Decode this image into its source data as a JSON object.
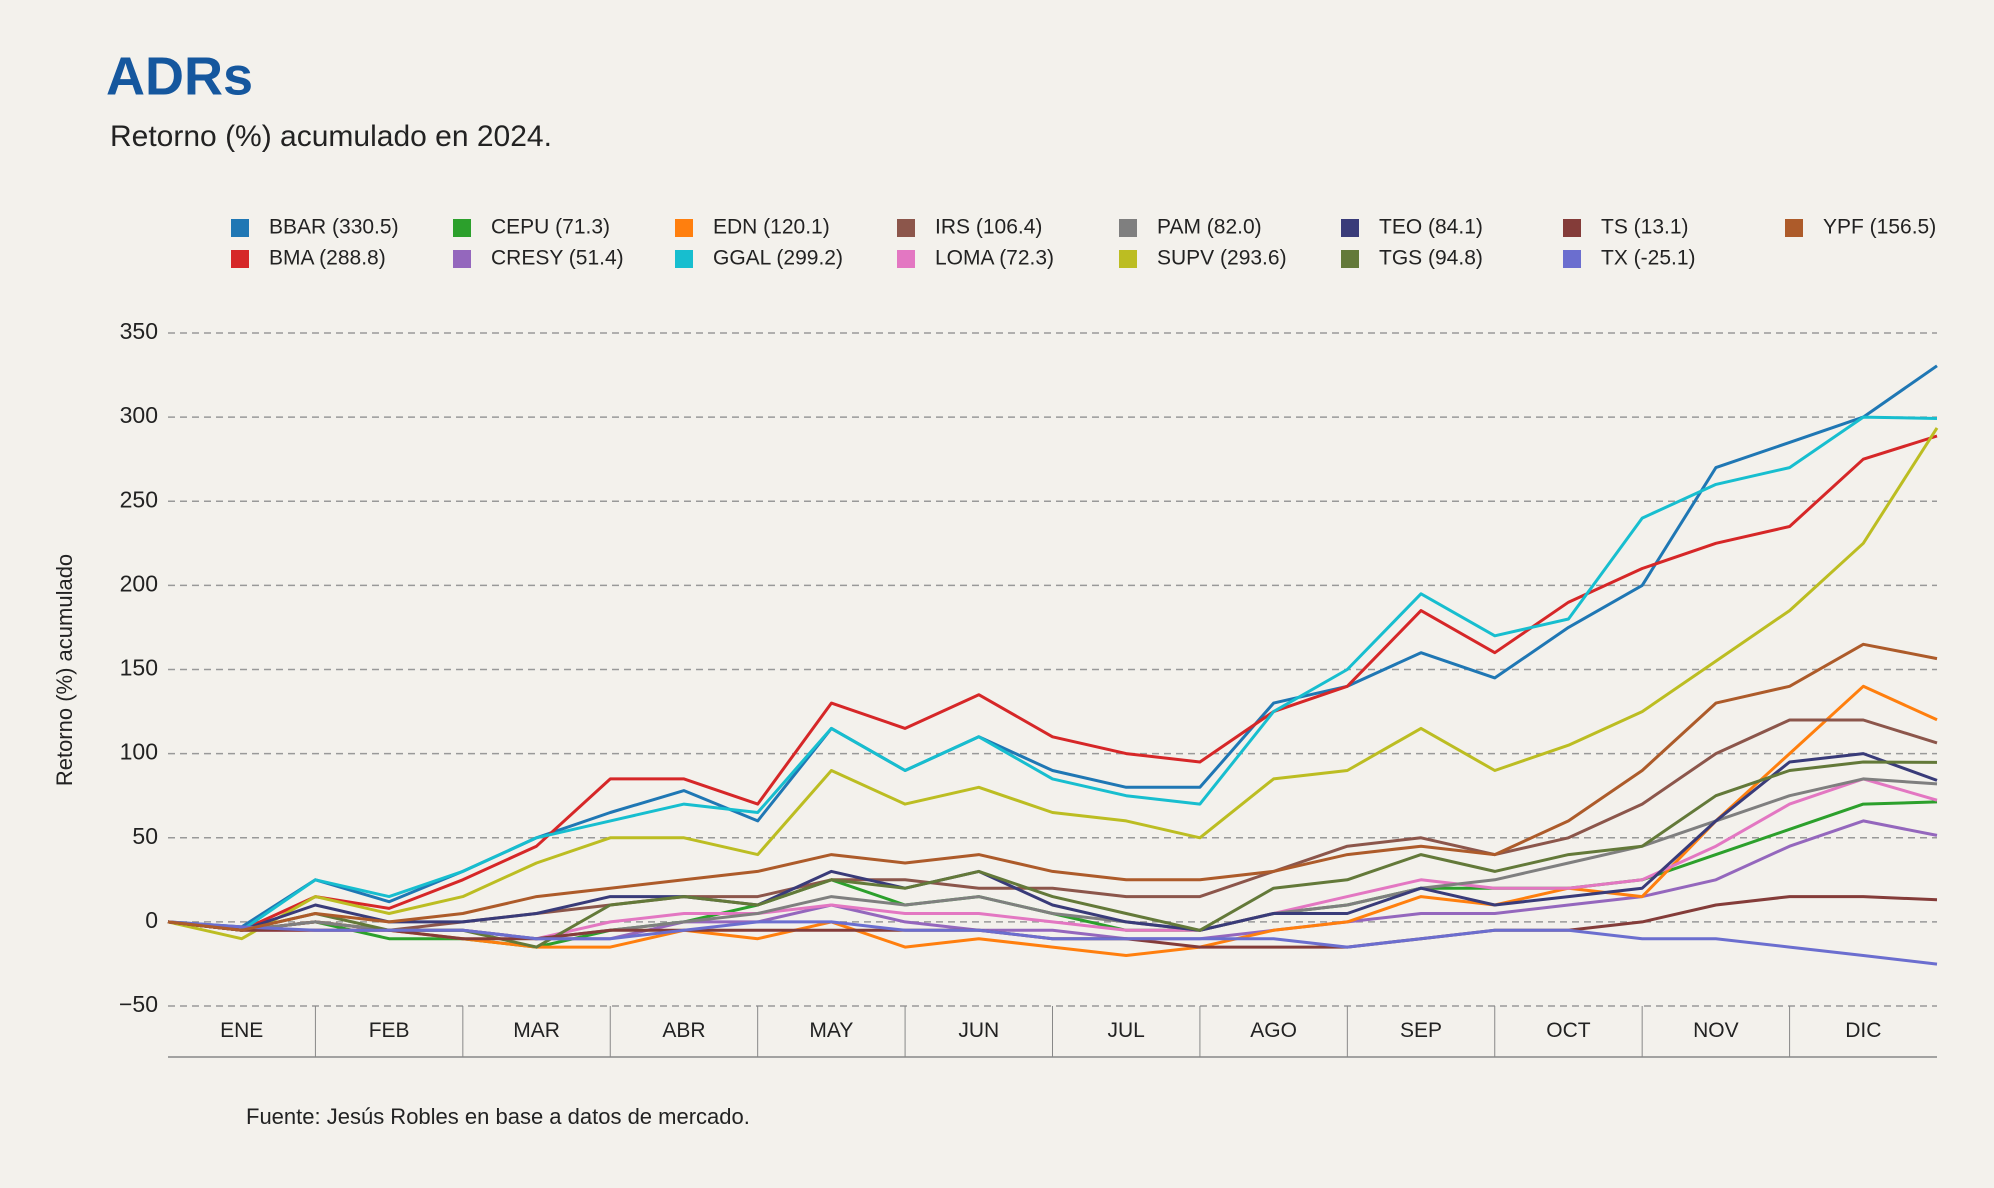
{
  "chart_data": {
    "type": "line",
    "title": "ADRs",
    "subtitle": "Retorno (%) acumulado en 2024.",
    "y_label": "Retorno (%) acumulado",
    "source": "Fuente: Jesús Robles en base a datos de mercado.",
    "months": [
      "ENE",
      "FEB",
      "MAR",
      "ABR",
      "MAY",
      "JUN",
      "JUL",
      "AGO",
      "SEP",
      "OCT",
      "NOV",
      "DIC"
    ],
    "ylim": [
      -50,
      350
    ],
    "yticks": [
      {
        "value": -50,
        "label": "−50"
      },
      0,
      50,
      100,
      150,
      200,
      250,
      300,
      350
    ],
    "grid": true,
    "series": [
      {
        "name": "BBAR (330.5)",
        "color": "#1f77b4",
        "values": [
          0,
          -3,
          25,
          12,
          30,
          50,
          65,
          78,
          60,
          115,
          90,
          110,
          90,
          80,
          80,
          130,
          140,
          160,
          145,
          175,
          200,
          270,
          285,
          300,
          330.5
        ]
      },
      {
        "name": "BMA (288.8)",
        "color": "#d62728",
        "values": [
          0,
          -5,
          15,
          8,
          25,
          45,
          85,
          85,
          70,
          130,
          115,
          135,
          110,
          100,
          95,
          125,
          140,
          185,
          160,
          190,
          210,
          225,
          235,
          275,
          288.8
        ]
      },
      {
        "name": "CEPU (71.3)",
        "color": "#2ca02c",
        "values": [
          0,
          -5,
          0,
          -10,
          -10,
          -15,
          -5,
          0,
          10,
          25,
          10,
          15,
          5,
          -5,
          -5,
          5,
          10,
          20,
          20,
          20,
          25,
          40,
          55,
          70,
          71.3
        ]
      },
      {
        "name": "CRESY (51.4)",
        "color": "#9467bd",
        "values": [
          0,
          -5,
          0,
          -5,
          -5,
          -10,
          -10,
          0,
          0,
          10,
          0,
          -5,
          -5,
          -10,
          -10,
          -5,
          0,
          5,
          5,
          10,
          15,
          25,
          45,
          60,
          51.4
        ]
      },
      {
        "name": "EDN (120.1)",
        "color": "#ff7f0e",
        "values": [
          0,
          -5,
          0,
          -5,
          -10,
          -15,
          -15,
          -5,
          -10,
          0,
          -15,
          -10,
          -15,
          -20,
          -15,
          -5,
          0,
          15,
          10,
          20,
          15,
          60,
          100,
          140,
          120.1
        ]
      },
      {
        "name": "GGAL (299.2)",
        "color": "#17becf",
        "values": [
          0,
          -5,
          25,
          15,
          30,
          50,
          60,
          70,
          65,
          115,
          90,
          110,
          85,
          75,
          70,
          125,
          150,
          195,
          170,
          180,
          240,
          260,
          270,
          300,
          299.2
        ]
      },
      {
        "name": "IRS (106.4)",
        "color": "#8c564b",
        "values": [
          0,
          -5,
          0,
          -5,
          0,
          5,
          10,
          15,
          15,
          25,
          25,
          20,
          20,
          15,
          15,
          30,
          45,
          50,
          40,
          50,
          70,
          100,
          120,
          120,
          106.4
        ]
      },
      {
        "name": "LOMA (72.3)",
        "color": "#e377c2",
        "values": [
          0,
          -5,
          -5,
          -5,
          -5,
          -10,
          0,
          5,
          5,
          10,
          5,
          5,
          0,
          -5,
          -5,
          5,
          15,
          25,
          20,
          20,
          25,
          45,
          70,
          85,
          72.3
        ]
      },
      {
        "name": "PAM (82.0)",
        "color": "#7f7f7f",
        "values": [
          0,
          -5,
          0,
          -5,
          -5,
          -10,
          -5,
          0,
          5,
          15,
          10,
          15,
          5,
          0,
          -5,
          5,
          10,
          20,
          25,
          35,
          45,
          60,
          75,
          85,
          82.0
        ]
      },
      {
        "name": "SUPV (293.6)",
        "color": "#bcbd22",
        "values": [
          0,
          -10,
          15,
          5,
          15,
          35,
          50,
          50,
          40,
          90,
          70,
          80,
          65,
          60,
          50,
          85,
          90,
          115,
          90,
          105,
          125,
          155,
          185,
          225,
          293.6
        ]
      },
      {
        "name": "TEO (84.1)",
        "color": "#393b79",
        "values": [
          0,
          -5,
          10,
          0,
          0,
          5,
          15,
          15,
          10,
          30,
          20,
          30,
          10,
          0,
          -5,
          5,
          5,
          20,
          10,
          15,
          20,
          60,
          95,
          100,
          84.1
        ]
      },
      {
        "name": "TGS (94.8)",
        "color": "#637939",
        "values": [
          0,
          -5,
          5,
          -5,
          -5,
          -15,
          10,
          15,
          10,
          25,
          20,
          30,
          15,
          5,
          -5,
          20,
          25,
          40,
          30,
          40,
          45,
          75,
          90,
          95,
          94.8
        ]
      },
      {
        "name": "TS (13.1)",
        "color": "#843c39",
        "values": [
          0,
          -5,
          -5,
          -5,
          -10,
          -10,
          -5,
          -5,
          -5,
          -5,
          -5,
          -5,
          -10,
          -10,
          -15,
          -15,
          -15,
          -10,
          -5,
          -5,
          0,
          10,
          15,
          15,
          13.1
        ]
      },
      {
        "name": "TX (-25.1)",
        "color": "#6b6ecf",
        "values": [
          0,
          -3,
          -5,
          -5,
          -5,
          -10,
          -10,
          -5,
          0,
          0,
          -5,
          -5,
          -10,
          -10,
          -10,
          -10,
          -15,
          -10,
          -5,
          -5,
          -10,
          -10,
          -15,
          -20,
          -25.1
        ]
      },
      {
        "name": "YPF (156.5)",
        "color": "#ad5b2a",
        "values": [
          0,
          -5,
          5,
          0,
          5,
          15,
          20,
          25,
          30,
          40,
          35,
          40,
          30,
          25,
          25,
          30,
          40,
          45,
          40,
          60,
          90,
          130,
          140,
          165,
          156.5
        ]
      }
    ]
  }
}
